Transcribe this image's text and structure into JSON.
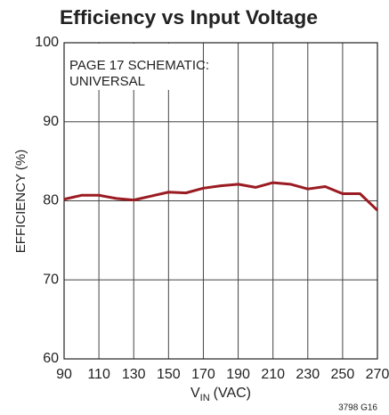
{
  "chart_data": {
    "type": "line",
    "title": "Efficiency vs Input Voltage",
    "ylabel": "EFFICIENCY (%)",
    "xlabel": [
      "V",
      "IN",
      "(VAC)"
    ],
    "annotation": [
      "PAGE 17 SCHEMATIC:",
      "UNIVERSAL"
    ],
    "footnote": "3798 G16",
    "x": [
      90,
      100,
      110,
      120,
      130,
      140,
      150,
      160,
      170,
      180,
      190,
      200,
      210,
      220,
      230,
      240,
      250,
      260,
      270
    ],
    "series": [
      {
        "name": "Efficiency",
        "color": "#9b1b22",
        "values": [
          80.2,
          80.7,
          80.7,
          80.3,
          80.1,
          80.6,
          81.1,
          81.0,
          81.6,
          81.9,
          82.1,
          81.7,
          82.3,
          82.1,
          81.5,
          81.8,
          80.9,
          80.9,
          78.8
        ]
      }
    ],
    "xlim": [
      90,
      270
    ],
    "xticks": [
      90,
      110,
      130,
      150,
      170,
      190,
      210,
      230,
      250,
      270
    ],
    "ylim": [
      60,
      100
    ],
    "yticks": [
      60,
      70,
      80,
      90,
      100
    ],
    "grid": true
  }
}
